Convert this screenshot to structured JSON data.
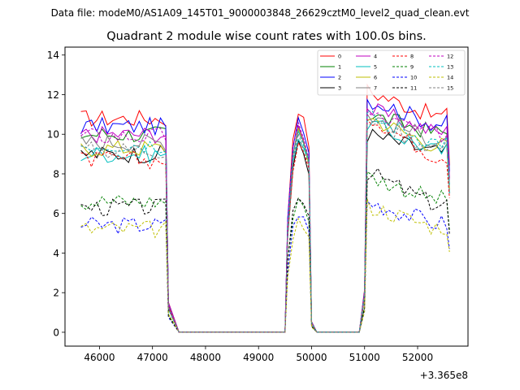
{
  "chart_data": {
    "type": "line",
    "suptitle": "Data file: modeM0/AS1A09_145T01_9000003848_26629cztM0_level2_quad_clean.evt",
    "title": "Quadrant 2 module wise count rates with 100.0s bins.",
    "xlabel": "",
    "ylabel": "",
    "x_offset_label": "+3.365e8",
    "xlim": [
      45350,
      52950
    ],
    "ylim": [
      -0.7,
      14.4
    ],
    "x_ticks": [
      46000,
      47000,
      48000,
      49000,
      50000,
      51000,
      52000
    ],
    "y_ticks": [
      0,
      2,
      4,
      6,
      8,
      10,
      12,
      14
    ],
    "x_tick_labels": [
      "46000",
      "47000",
      "48000",
      "49000",
      "50000",
      "51000",
      "52000"
    ],
    "y_tick_labels": [
      "0",
      "2",
      "4",
      "6",
      "8",
      "10",
      "12",
      "14"
    ],
    "legend_position": "top-right",
    "segments": [
      [
        45650,
        47250
      ],
      [
        49550,
        49950
      ],
      [
        51050,
        52550
      ]
    ],
    "zero_gaps": [
      [
        47500,
        49500
      ],
      [
        50100,
        50900
      ]
    ],
    "series": [
      {
        "name": "0",
        "color": "#ff0000",
        "dash": "solid",
        "base": 10.8,
        "mid": 11.6,
        "late": 12.2
      },
      {
        "name": "1",
        "color": "#008000",
        "dash": "solid",
        "base": 10.0,
        "mid": 10.5,
        "late": 11.0
      },
      {
        "name": "2",
        "color": "#0000ff",
        "dash": "solid",
        "base": 10.4,
        "mid": 11.2,
        "late": 11.8
      },
      {
        "name": "3",
        "color": "#000000",
        "dash": "solid",
        "base": 9.0,
        "mid": 9.8,
        "late": 10.0
      },
      {
        "name": "4",
        "color": "#bf00bf",
        "dash": "solid",
        "base": 10.0,
        "mid": 10.7,
        "late": 11.3
      },
      {
        "name": "5",
        "color": "#00bfbf",
        "dash": "solid",
        "base": 9.0,
        "mid": 10.2,
        "late": 10.6
      },
      {
        "name": "6",
        "color": "#bfbf00",
        "dash": "solid",
        "base": 9.3,
        "mid": 10.4,
        "late": 10.9
      },
      {
        "name": "7",
        "color": "#808080",
        "dash": "solid",
        "base": 9.6,
        "mid": 10.6,
        "late": 11.0
      },
      {
        "name": "8",
        "color": "#ff0000",
        "dash": "dashed",
        "base": 8.7,
        "mid": 9.8,
        "late": 11.0
      },
      {
        "name": "9",
        "color": "#008000",
        "dash": "dashed",
        "base": 6.6,
        "mid": 7.0,
        "late": 7.9
      },
      {
        "name": "10",
        "color": "#0000ff",
        "dash": "dashed",
        "base": 5.4,
        "mid": 6.2,
        "late": 6.6
      },
      {
        "name": "11",
        "color": "#000000",
        "dash": "dashed",
        "base": 6.3,
        "mid": 7.2,
        "late": 8.1
      },
      {
        "name": "12",
        "color": "#bf00bf",
        "dash": "dashed",
        "base": 9.9,
        "mid": 10.8,
        "late": 11.0
      },
      {
        "name": "13",
        "color": "#00bfbf",
        "dash": "dashed",
        "base": 9.5,
        "mid": 10.5,
        "late": 10.9
      },
      {
        "name": "14",
        "color": "#bfbf00",
        "dash": "dashed",
        "base": 5.2,
        "mid": 5.8,
        "late": 6.4
      },
      {
        "name": "15",
        "color": "#808080",
        "dash": "dashed",
        "base": 9.2,
        "mid": 10.1,
        "late": 10.7
      }
    ]
  }
}
